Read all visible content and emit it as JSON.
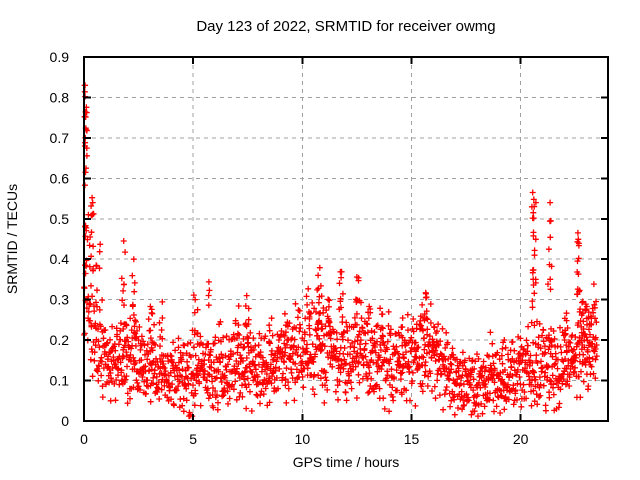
{
  "page": {
    "background": "#ffffff",
    "border_color": "#000000",
    "text_color": "#000000"
  },
  "chart_data": {
    "type": "scatter",
    "title": "Day 123 of 2022, SRMTID for receiver owmg",
    "xlabel": "GPS time / hours",
    "ylabel": "SRMTID / TECUs",
    "xlim": [
      0,
      24
    ],
    "ylim": [
      0,
      0.9
    ],
    "xticks": {
      "values": [
        0,
        5,
        10,
        15,
        20
      ],
      "labels": [
        "0",
        "5",
        "10",
        "15",
        "20"
      ]
    },
    "yticks": {
      "values": [
        0,
        0.1,
        0.2,
        0.3,
        0.4,
        0.5,
        0.6,
        0.7,
        0.8,
        0.9
      ],
      "labels": [
        "0",
        "0.1",
        "0.2",
        "0.3",
        "0.4",
        "0.5",
        "0.6",
        "0.7",
        "0.8",
        "0.9"
      ]
    },
    "grid": {
      "show": true,
      "color": "#a0a0a0",
      "dash": [
        4,
        4
      ]
    },
    "legend": {
      "show": false
    },
    "marker": {
      "shape": "plus",
      "color": "#ff0000",
      "size": 7,
      "stroke_width": 1.3
    },
    "series_name": "SRMTID",
    "notable_points": [
      [
        0.05,
        0.83
      ],
      [
        0.05,
        0.802
      ],
      [
        0.07,
        0.764
      ],
      [
        0.08,
        0.752
      ],
      [
        0.1,
        0.72
      ],
      [
        0.06,
        0.7
      ],
      [
        0.05,
        0.688
      ],
      [
        0.04,
        0.68
      ],
      [
        0.09,
        0.625
      ],
      [
        0.07,
        0.615
      ],
      [
        0.37,
        0.552
      ],
      [
        0.4,
        0.54
      ],
      [
        0.2,
        0.51
      ],
      [
        0.33,
        0.508
      ],
      [
        0.05,
        0.48
      ],
      [
        0.28,
        0.455
      ],
      [
        1.82,
        0.445
      ],
      [
        2.28,
        0.4
      ],
      [
        5.72,
        0.344
      ],
      [
        7.45,
        0.31
      ],
      [
        10.8,
        0.379
      ],
      [
        11.8,
        0.369
      ],
      [
        12.5,
        0.356
      ],
      [
        15.65,
        0.317
      ],
      [
        20.55,
        0.565
      ],
      [
        20.6,
        0.548
      ],
      [
        20.62,
        0.53
      ],
      [
        20.58,
        0.515
      ],
      [
        21.35,
        0.54
      ],
      [
        21.38,
        0.495
      ],
      [
        22.62,
        0.465
      ],
      [
        22.6,
        0.443
      ],
      [
        23.4,
        0.28
      ]
    ],
    "synthesis": {
      "seed": 20220501,
      "points_per_hour": 75,
      "x_start": 0.0,
      "x_end": 23.5,
      "y_min_clip": 0.012,
      "band_keyframes": [
        [
          0.0,
          0.3,
          0.12
        ],
        [
          0.3,
          0.26,
          0.1
        ],
        [
          0.7,
          0.2,
          0.08
        ],
        [
          1.2,
          0.145,
          0.065
        ],
        [
          2.0,
          0.15,
          0.07
        ],
        [
          3.0,
          0.14,
          0.06
        ],
        [
          4.0,
          0.115,
          0.065
        ],
        [
          4.8,
          0.095,
          0.07
        ],
        [
          5.5,
          0.12,
          0.06
        ],
        [
          6.5,
          0.13,
          0.06
        ],
        [
          7.5,
          0.145,
          0.07
        ],
        [
          8.2,
          0.12,
          0.06
        ],
        [
          9.0,
          0.14,
          0.06
        ],
        [
          10.0,
          0.17,
          0.08
        ],
        [
          10.8,
          0.19,
          0.09
        ],
        [
          11.5,
          0.16,
          0.07
        ],
        [
          12.4,
          0.18,
          0.09
        ],
        [
          13.0,
          0.15,
          0.07
        ],
        [
          14.0,
          0.14,
          0.07
        ],
        [
          15.0,
          0.15,
          0.07
        ],
        [
          15.6,
          0.17,
          0.08
        ],
        [
          16.2,
          0.14,
          0.07
        ],
        [
          17.0,
          0.1,
          0.06
        ],
        [
          17.8,
          0.085,
          0.055
        ],
        [
          18.5,
          0.1,
          0.06
        ],
        [
          19.5,
          0.11,
          0.06
        ],
        [
          20.3,
          0.13,
          0.07
        ],
        [
          21.0,
          0.15,
          0.08
        ],
        [
          21.8,
          0.13,
          0.07
        ],
        [
          22.4,
          0.17,
          0.09
        ],
        [
          23.0,
          0.19,
          0.09
        ],
        [
          23.5,
          0.2,
          0.07
        ]
      ],
      "spikes": [
        {
          "x": 0.08,
          "ymin": 0.44,
          "ymax": 0.83,
          "n": 14,
          "xj": 0.06
        },
        {
          "x": 0.35,
          "ymin": 0.33,
          "ymax": 0.55,
          "n": 8,
          "xj": 0.1
        },
        {
          "x": 0.65,
          "ymin": 0.28,
          "ymax": 0.44,
          "n": 6,
          "xj": 0.1
        },
        {
          "x": 1.85,
          "ymin": 0.22,
          "ymax": 0.45,
          "n": 12,
          "xj": 0.12
        },
        {
          "x": 2.3,
          "ymin": 0.2,
          "ymax": 0.4,
          "n": 10,
          "xj": 0.12
        },
        {
          "x": 3.1,
          "ymin": 0.18,
          "ymax": 0.3,
          "n": 6,
          "xj": 0.1
        },
        {
          "x": 3.55,
          "ymin": 0.18,
          "ymax": 0.3,
          "n": 6,
          "xj": 0.1
        },
        {
          "x": 5.1,
          "ymin": 0.2,
          "ymax": 0.33,
          "n": 6,
          "xj": 0.12
        },
        {
          "x": 5.72,
          "ymin": 0.26,
          "ymax": 0.345,
          "n": 3,
          "xj": 0.05
        },
        {
          "x": 7.0,
          "ymin": 0.2,
          "ymax": 0.29,
          "n": 5,
          "xj": 0.1
        },
        {
          "x": 7.45,
          "ymin": 0.2,
          "ymax": 0.31,
          "n": 7,
          "xj": 0.1
        },
        {
          "x": 8.5,
          "ymin": 0.18,
          "ymax": 0.28,
          "n": 5,
          "xj": 0.12
        },
        {
          "x": 9.3,
          "ymin": 0.18,
          "ymax": 0.27,
          "n": 4,
          "xj": 0.12
        },
        {
          "x": 10.3,
          "ymin": 0.2,
          "ymax": 0.33,
          "n": 8,
          "xj": 0.12
        },
        {
          "x": 10.8,
          "ymin": 0.22,
          "ymax": 0.38,
          "n": 10,
          "xj": 0.12
        },
        {
          "x": 11.3,
          "ymin": 0.2,
          "ymax": 0.31,
          "n": 6,
          "xj": 0.1
        },
        {
          "x": 11.8,
          "ymin": 0.24,
          "ymax": 0.37,
          "n": 7,
          "xj": 0.1
        },
        {
          "x": 12.5,
          "ymin": 0.24,
          "ymax": 0.36,
          "n": 8,
          "xj": 0.12
        },
        {
          "x": 13.1,
          "ymin": 0.2,
          "ymax": 0.3,
          "n": 5,
          "xj": 0.1
        },
        {
          "x": 13.65,
          "ymin": 0.2,
          "ymax": 0.3,
          "n": 5,
          "xj": 0.1
        },
        {
          "x": 14.5,
          "ymin": 0.18,
          "ymax": 0.27,
          "n": 4,
          "xj": 0.12
        },
        {
          "x": 15.6,
          "ymin": 0.2,
          "ymax": 0.32,
          "n": 8,
          "xj": 0.12
        },
        {
          "x": 16.1,
          "ymin": 0.18,
          "ymax": 0.28,
          "n": 5,
          "xj": 0.1
        },
        {
          "x": 19.2,
          "ymin": 0.14,
          "ymax": 0.21,
          "n": 3,
          "xj": 0.08
        },
        {
          "x": 20.6,
          "ymin": 0.23,
          "ymax": 0.55,
          "n": 20,
          "xj": 0.1
        },
        {
          "x": 21.35,
          "ymin": 0.17,
          "ymax": 0.5,
          "n": 11,
          "xj": 0.1
        },
        {
          "x": 22.0,
          "ymin": 0.14,
          "ymax": 0.28,
          "n": 6,
          "xj": 0.12
        },
        {
          "x": 22.65,
          "ymin": 0.3,
          "ymax": 0.46,
          "n": 10,
          "xj": 0.06
        },
        {
          "x": 22.9,
          "ymin": 0.13,
          "ymax": 0.33,
          "n": 16,
          "xj": 0.25
        },
        {
          "x": 23.3,
          "ymin": 0.13,
          "ymax": 0.28,
          "n": 9,
          "xj": 0.18
        }
      ]
    }
  }
}
